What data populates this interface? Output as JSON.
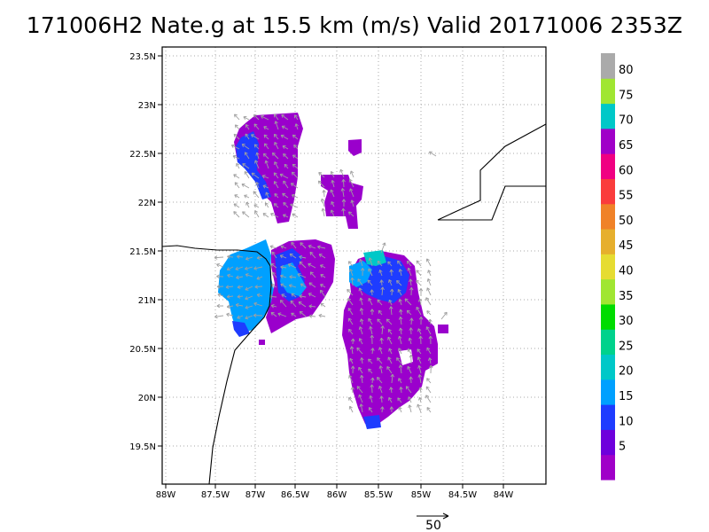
{
  "title": "171006H2 Nate.g at 15.5 km (m/s) Valid 20171006 2353Z",
  "map": {
    "lat_ticks": [
      "23.5N",
      "23N",
      "22.5N",
      "22N",
      "21.5N",
      "21N",
      "20.5N",
      "20N",
      "19.5N"
    ],
    "lon_ticks": [
      "88W",
      "87.5W",
      "87W",
      "86.5W",
      "86W",
      "85.5W",
      "85W",
      "84.5W",
      "84W"
    ]
  },
  "colorbar": {
    "labels": [
      "5",
      "10",
      "15",
      "20",
      "25",
      "30",
      "35",
      "40",
      "45",
      "50",
      "55",
      "60",
      "65",
      "70",
      "75",
      "80"
    ],
    "colors": [
      "#a000c8",
      "#6e00dc",
      "#1e3cff",
      "#00a0ff",
      "#00c8c8",
      "#00d28c",
      "#00dc00",
      "#a0e632",
      "#e6dc32",
      "#e6af2d",
      "#f08228",
      "#fa3c3c",
      "#f00082",
      "#a000c8",
      "#00c8c8",
      "#a0e632",
      "#aaaaaa"
    ]
  },
  "reference_vector": {
    "label": "50"
  },
  "colors": {
    "purple": "#9a00cc",
    "violet": "#7000dd",
    "blue": "#1e3cff",
    "light_blue": "#00a0ff",
    "teal": "#00c8c8",
    "coast": "#000000",
    "grid": "#aaaaaa",
    "arrow": "#a0a0a0"
  }
}
